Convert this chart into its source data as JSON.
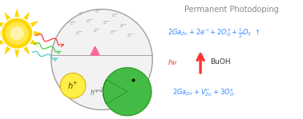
{
  "title": "Permanent Photodoping",
  "title_color": "#888888",
  "title_fontsize": 7.0,
  "bg_color": "#ffffff",
  "sphere_edge_color": "#a0a0a0",
  "sphere_face_color": "#f2f2f2",
  "electron_color": "#aaaaaa",
  "sun_color": "#FFD700",
  "hole_scavenger_color": "#44BB44",
  "hplus_bubble_color": "#FFEE44",
  "arrow_up_color": "#FF6699",
  "eq1_color": "#3388FF",
  "eq2_hv_color": "#FF3333",
  "eq2_buoh_color": "#333333",
  "eq3_color": "#3388FF",
  "wave_colors": [
    "#FF4444",
    "#44CC44",
    "#44CCCC"
  ]
}
